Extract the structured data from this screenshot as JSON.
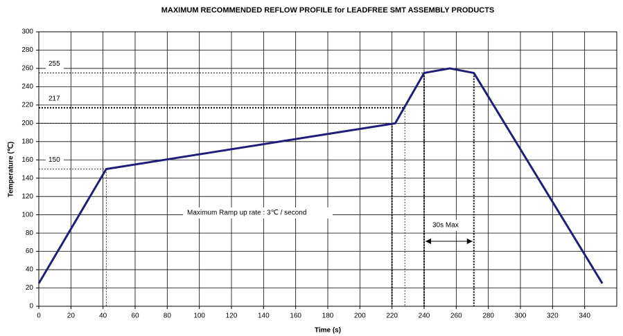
{
  "chart_data": {
    "type": "line",
    "title": "MAXIMUM RECOMMENDED REFLOW PROFILE for LEADFREE SMT ASSEMBLY PRODUCTS",
    "xlabel": "Time (s)",
    "ylabel": "Temperature (℃)",
    "x": [
      0,
      42,
      222,
      240,
      256,
      271,
      351
    ],
    "values": [
      25,
      150,
      200,
      255,
      260,
      255,
      25
    ],
    "color": "#1f1f7a",
    "xlim": [
      0,
      360
    ],
    "ylim": [
      0,
      300
    ],
    "xticks": [
      0,
      20,
      40,
      60,
      80,
      100,
      120,
      140,
      160,
      180,
      200,
      220,
      240,
      260,
      280,
      300,
      320,
      340
    ],
    "yticks": [
      0,
      20,
      40,
      60,
      80,
      100,
      120,
      140,
      160,
      180,
      200,
      220,
      240,
      260,
      280,
      300
    ],
    "grid": true,
    "hlines": [
      {
        "value": 255,
        "label": "255",
        "xmax": 240
      },
      {
        "value": 217,
        "label": "217",
        "xmax": 228
      },
      {
        "value": 200,
        "xmax": 222
      },
      {
        "value": 150,
        "label": "150",
        "xmax": 42
      }
    ],
    "vlines": [
      {
        "value": 42,
        "ymax": 150
      },
      {
        "value": 220,
        "ymax": 200
      },
      {
        "value": 228,
        "ymax": 217
      },
      {
        "value": 240,
        "ymax": 255
      },
      {
        "value": 271,
        "ymax": 255
      }
    ],
    "annotations": [
      "Maximum Ramp up rate : 3℃ / second",
      "30s Max"
    ]
  }
}
